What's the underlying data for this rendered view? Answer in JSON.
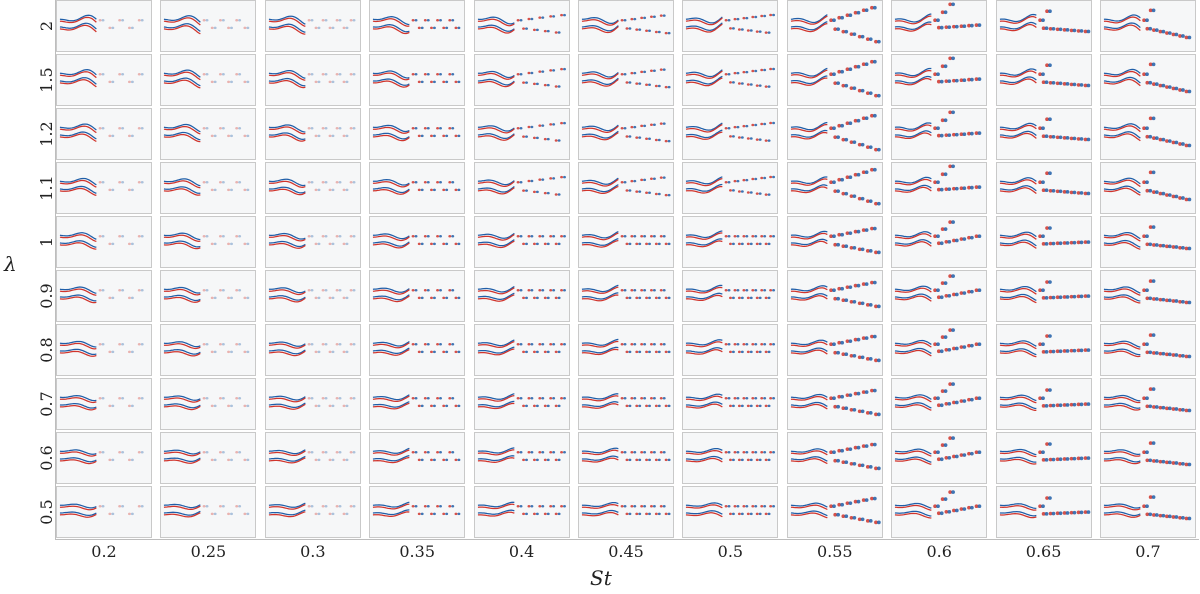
{
  "figure": {
    "x_axis_label": "St",
    "y_axis_label": "λ",
    "st_values": [
      "0.2",
      "0.25",
      "0.3",
      "0.35",
      "0.4",
      "0.45",
      "0.5",
      "0.55",
      "0.6",
      "0.65",
      "0.7"
    ],
    "lambda_values": [
      "2",
      "1.5",
      "1.2",
      "1.1",
      "1",
      "0.9",
      "0.8",
      "0.7",
      "0.6",
      "0.5"
    ],
    "colormap": {
      "positive": "#d0342c",
      "negative": "#1f5ea8",
      "background": "#f6f7f8"
    }
  }
}
